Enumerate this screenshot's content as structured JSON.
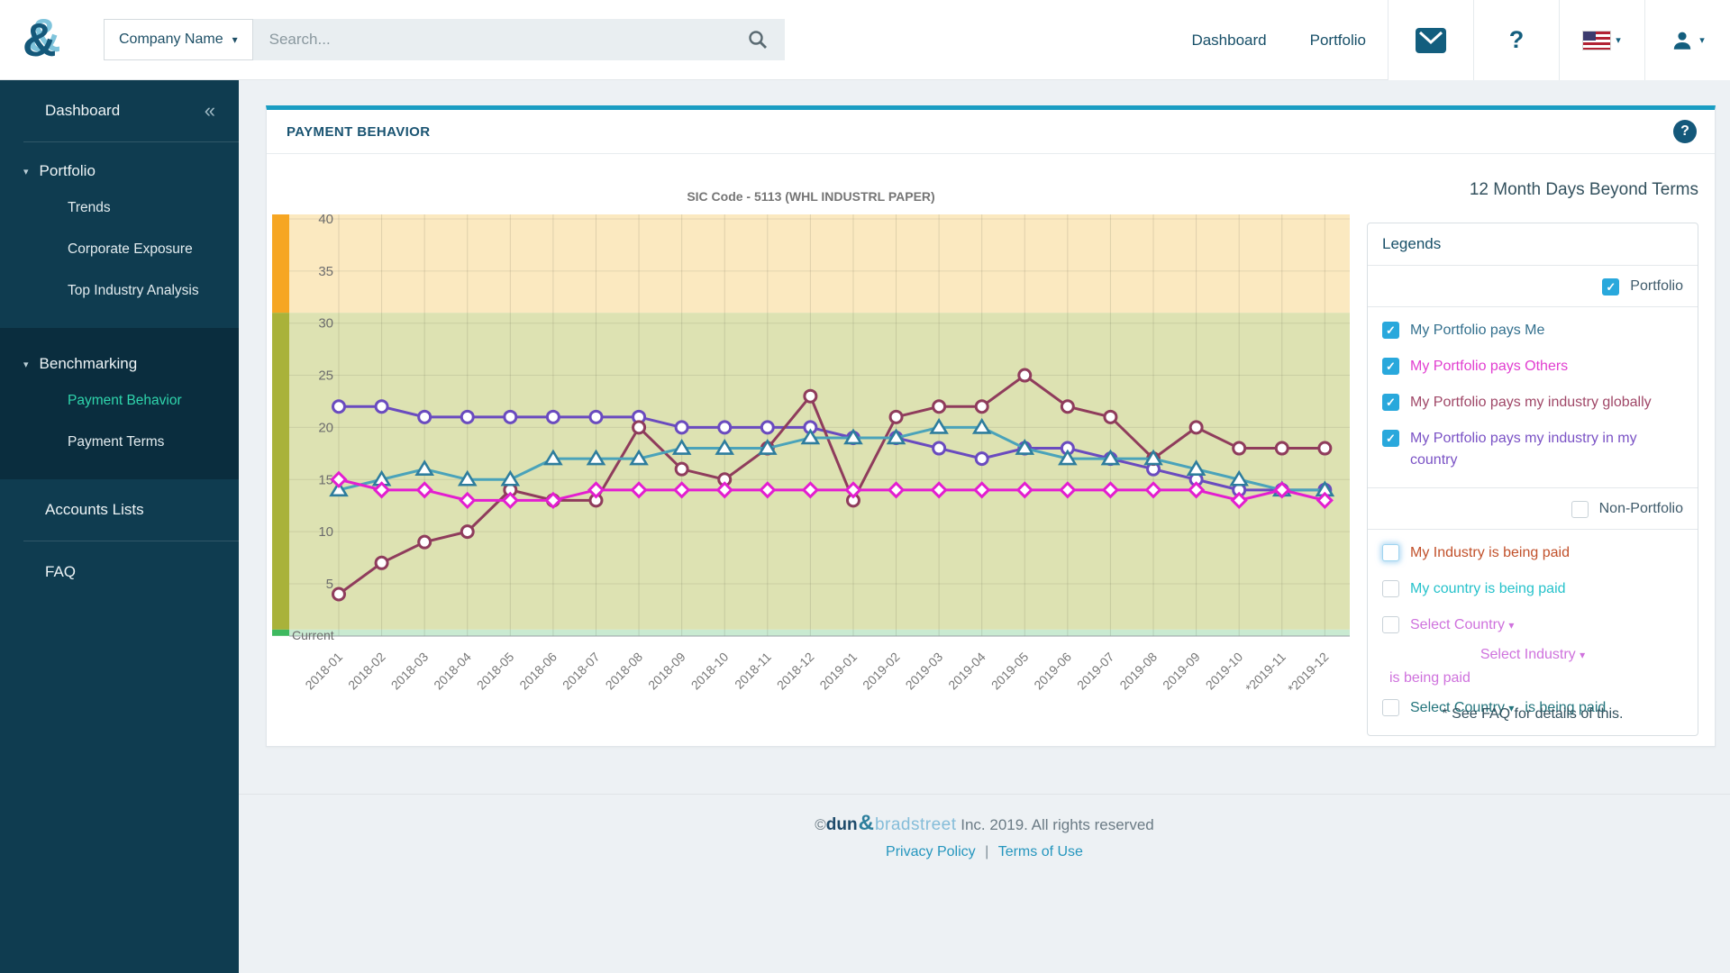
{
  "topbar": {
    "search_category": "Company Name",
    "search_placeholder": "Search...",
    "nav_dashboard": "Dashboard",
    "nav_portfolio": "Portfolio"
  },
  "icons": {
    "collapse": "«",
    "caret": "▾",
    "help": "?",
    "check": "✓",
    "copyright": "©"
  },
  "sidebar": {
    "dashboard": "Dashboard",
    "portfolio": "Portfolio",
    "portfolio_children": [
      "Trends",
      "Corporate Exposure",
      "Top Industry Analysis"
    ],
    "benchmarking": "Benchmarking",
    "benchmarking_children": [
      "Payment Behavior",
      "Payment Terms"
    ],
    "active_item": "Payment Behavior",
    "accounts": "Accounts Lists",
    "faq": "FAQ"
  },
  "card": {
    "title": "PAYMENT BEHAVIOR"
  },
  "chart_data": {
    "type": "line",
    "title": "SIC Code - 5113 (WHL INDUSTRL PAPER)",
    "right_title": "12 Month Days Beyond Terms",
    "x_labels": [
      "2018-01",
      "2018-02",
      "2018-03",
      "2018-04",
      "2018-05",
      "2018-06",
      "2018-07",
      "2018-08",
      "2018-09",
      "2018-10",
      "2018-11",
      "2018-12",
      "2019-01",
      "2019-02",
      "2019-03",
      "2019-04",
      "2019-05",
      "2019-06",
      "2019-07",
      "2019-08",
      "2019-09",
      "2019-10",
      "*2019-11",
      "*2019-12"
    ],
    "y_ticks": [
      40,
      35,
      30,
      25,
      20,
      15,
      10,
      5
    ],
    "ylim": [
      0,
      40
    ],
    "current_label": "Current",
    "grid": true,
    "bands": [
      {
        "from": 31,
        "to": 40.5,
        "color": "#fbe9c0",
        "strip": "#f6a623"
      },
      {
        "from": 0.6,
        "to": 31,
        "color": "#dde2b2",
        "strip": "#a9b23a"
      },
      {
        "from": 0,
        "to": 0.6,
        "color": "#c9ead1",
        "strip": "#3eb95f"
      }
    ],
    "series": [
      {
        "name": "My Portfolio pays my industry in my country",
        "color": "#6a4bbf",
        "marker": "circle",
        "values": [
          22,
          22,
          21,
          21,
          21,
          21,
          21,
          21,
          20,
          20,
          20,
          20,
          19,
          19,
          18,
          17,
          18,
          18,
          17,
          16,
          15,
          14,
          14,
          14
        ]
      },
      {
        "name": "My Portfolio pays my industry globally",
        "color": "#8f3c5c",
        "marker": "circle",
        "values": [
          4,
          7,
          9,
          10,
          14,
          13,
          13,
          20,
          16,
          15,
          18,
          23,
          13,
          21,
          22,
          22,
          25,
          22,
          21,
          17,
          20,
          18,
          18,
          18
        ]
      },
      {
        "name": "My Portfolio pays Me",
        "color": "#4aa3ba",
        "marker": "triangle",
        "marker_color": "#2e7d9d",
        "values": [
          14,
          15,
          16,
          15,
          15,
          17,
          17,
          17,
          18,
          18,
          18,
          19,
          19,
          19,
          20,
          20,
          18,
          17,
          17,
          17,
          16,
          15,
          14,
          14
        ]
      },
      {
        "name": "My Portfolio pays Others",
        "color": "#e31ed0",
        "marker": "diamond",
        "values": [
          15,
          14,
          14,
          13,
          13,
          13,
          14,
          14,
          14,
          14,
          14,
          14,
          14,
          14,
          14,
          14,
          14,
          14,
          14,
          14,
          14,
          13,
          14,
          13
        ]
      }
    ]
  },
  "legend": {
    "title": "Legends",
    "group1_label": "Portfolio",
    "group1_checked": true,
    "items": [
      {
        "label": "My Portfolio pays Me",
        "color": "#33708e",
        "checked": true
      },
      {
        "label": "My Portfolio pays Others",
        "color": "#e13ed0",
        "checked": true
      },
      {
        "label": "My Portfolio pays my industry globally",
        "color": "#a04868",
        "checked": true
      },
      {
        "label": "My Portfolio pays my industry in my country",
        "color": "#7a52c5",
        "checked": true
      }
    ],
    "group2_label": "Non-Portfolio",
    "group2_checked": false,
    "np_items": [
      {
        "label": "My Industry is being paid",
        "color": "#c1502a",
        "checked": false
      },
      {
        "label": "My country is being paid",
        "color": "#26c2cb",
        "checked": false
      },
      {
        "label": "Select Country",
        "color": "#cf72dd",
        "checked": false
      },
      {
        "label": "Select Industry",
        "color": "#cf72dd"
      },
      {
        "label": "is being paid",
        "color": "#cf72dd"
      },
      {
        "label": "Select Country",
        "color": "#23747c",
        "checked": false
      },
      {
        "label": "is being paid",
        "color": "#23747c"
      }
    ],
    "footnote": "* See FAQ for details of this."
  },
  "footer": {
    "brand_dun": "dun",
    "brand_amp": "&",
    "brand_bradstreet": "bradstreet",
    "copyright_suffix": "Inc. 2019. All rights reserved",
    "link1": "Privacy Policy",
    "separator": "|",
    "link2": "Terms of Use"
  }
}
